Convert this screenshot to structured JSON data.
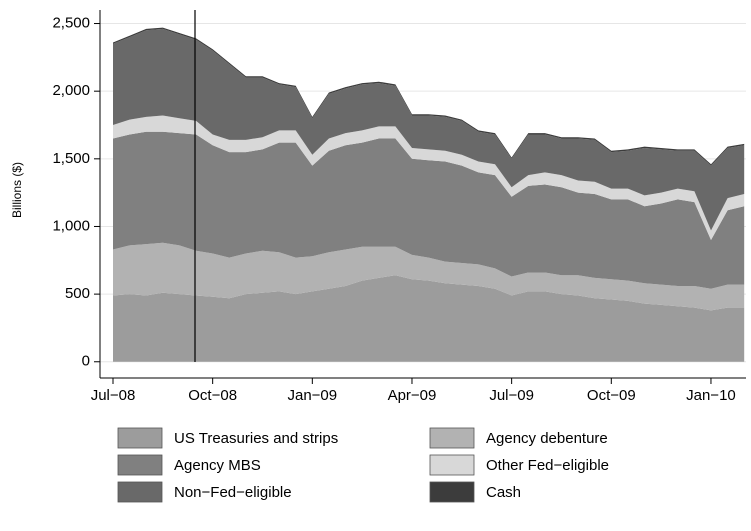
{
  "chart_data": {
    "type": "stacked_area",
    "y_label": "Billions ($)",
    "categories": [
      "Jul−08",
      null,
      null,
      null,
      null,
      null,
      "Oct−08",
      null,
      null,
      null,
      null,
      null,
      "Jan−09",
      null,
      null,
      null,
      null,
      null,
      "Apr−09",
      null,
      null,
      null,
      null,
      null,
      "Jul−09",
      null,
      null,
      null,
      null,
      null,
      "Oct−09",
      null,
      null,
      null,
      null,
      null,
      "Jan−10",
      null,
      null
    ],
    "ylim": [
      -120,
      2600
    ],
    "yticks": [
      0,
      500,
      {
        "value": 1000,
        "label": "1,000"
      },
      {
        "value": 1500,
        "label": "1,500"
      },
      {
        "value": 2000,
        "label": "2,000"
      },
      {
        "value": 2500,
        "label": "2,500"
      }
    ],
    "grid": true,
    "series": [
      {
        "name": "US Treasuries and strips",
        "color": "#9c9c9c",
        "values": [
          490,
          500,
          490,
          510,
          500,
          490,
          480,
          470,
          500,
          510,
          520,
          500,
          520,
          540,
          560,
          600,
          620,
          640,
          610,
          600,
          580,
          570,
          560,
          540,
          490,
          520,
          520,
          500,
          490,
          470,
          460,
          450,
          430,
          420,
          410,
          400,
          380,
          400,
          400
        ]
      },
      {
        "name": "Agency debenture",
        "color": "#b2b2b2",
        "values": [
          340,
          360,
          380,
          370,
          360,
          330,
          320,
          300,
          300,
          310,
          290,
          270,
          260,
          270,
          270,
          250,
          230,
          210,
          180,
          170,
          160,
          160,
          160,
          150,
          140,
          140,
          140,
          140,
          150,
          150,
          150,
          150,
          150,
          150,
          150,
          160,
          160,
          170,
          170
        ]
      },
      {
        "name": "Agency MBS",
        "color": "#808080",
        "values": [
          820,
          820,
          830,
          820,
          830,
          860,
          800,
          780,
          750,
          750,
          810,
          850,
          670,
          750,
          770,
          770,
          800,
          800,
          710,
          720,
          740,
          720,
          680,
          690,
          590,
          640,
          650,
          650,
          610,
          620,
          590,
          600,
          570,
          600,
          640,
          620,
          360,
          550,
          580
        ]
      },
      {
        "name": "Other Fed−eligible",
        "color": "#d8d8d8",
        "values": [
          100,
          110,
          110,
          120,
          110,
          100,
          80,
          90,
          90,
          90,
          90,
          90,
          80,
          90,
          90,
          90,
          90,
          90,
          80,
          80,
          80,
          80,
          80,
          80,
          70,
          80,
          90,
          90,
          90,
          90,
          80,
          80,
          80,
          80,
          80,
          80,
          70,
          90,
          90
        ]
      },
      {
        "name": "Non−Fed−eligible",
        "color": "#696969",
        "values": [
          600,
          610,
          640,
          640,
          620,
          600,
          620,
          560,
          460,
          440,
          340,
          320,
          270,
          330,
          330,
          340,
          320,
          300,
          240,
          250,
          250,
          250,
          220,
          220,
          210,
          300,
          280,
          270,
          310,
          310,
          270,
          280,
          350,
          320,
          280,
          300,
          480,
          370,
          360
        ]
      },
      {
        "name": "Cash",
        "color": "#3c3c3c",
        "values": [
          10,
          10,
          10,
          10,
          10,
          10,
          10,
          10,
          10,
          10,
          10,
          10,
          10,
          10,
          10,
          10,
          10,
          10,
          10,
          10,
          10,
          10,
          10,
          10,
          10,
          10,
          10,
          10,
          10,
          10,
          10,
          10,
          10,
          10,
          10,
          10,
          10,
          10,
          10
        ]
      }
    ]
  }
}
